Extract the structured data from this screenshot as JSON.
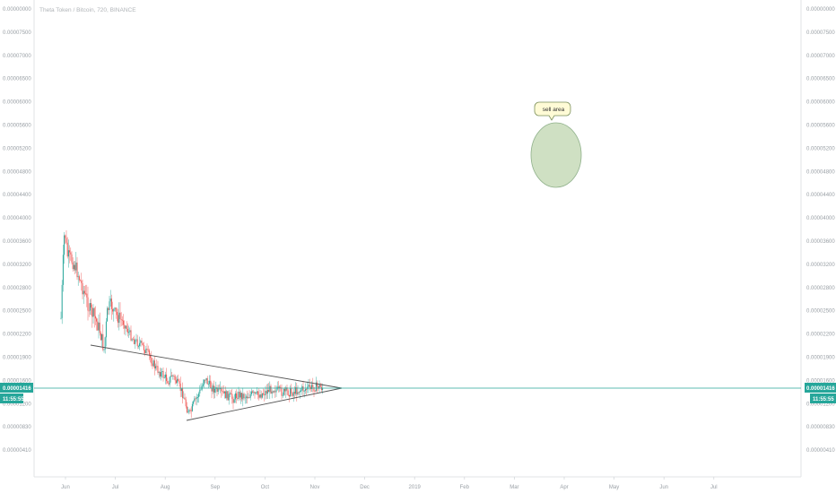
{
  "chart_data": {
    "type": "candlestick",
    "title": "Theta Token / Bitcoin, 720, BINANCE",
    "y_ticks": [
      "0.00000000",
      "0.00007500",
      "0.00007000",
      "0.00006500",
      "0.00006000",
      "0.00005600",
      "0.00005200",
      "0.00004800",
      "0.00004400",
      "0.00004000",
      "0.00003600",
      "0.00003200",
      "0.00002800",
      "0.00002500",
      "0.00002200",
      "0.00001900",
      "0.00001600",
      "0.00001200",
      "0.00000830",
      "0.00000410"
    ],
    "x_ticks": [
      "Jun",
      "Jul",
      "Aug",
      "Sep",
      "Oct",
      "Nov",
      "Dec",
      "2019",
      "Feb",
      "Mar",
      "Apr",
      "May",
      "Jun",
      "Jul"
    ],
    "current_price": {
      "value": "0.00001416",
      "time": "11:55:55"
    },
    "annotation": {
      "label": "sell area"
    },
    "colors": {
      "up": "#26a69a",
      "down": "#ef5350",
      "price_line": "#26a69a",
      "triangle": "#555555",
      "ellipse_fill": "#cfe0c3",
      "ellipse_stroke": "#8fb08a",
      "callout_fill": "#fffbd6",
      "callout_stroke": "#7a8f5a"
    }
  }
}
